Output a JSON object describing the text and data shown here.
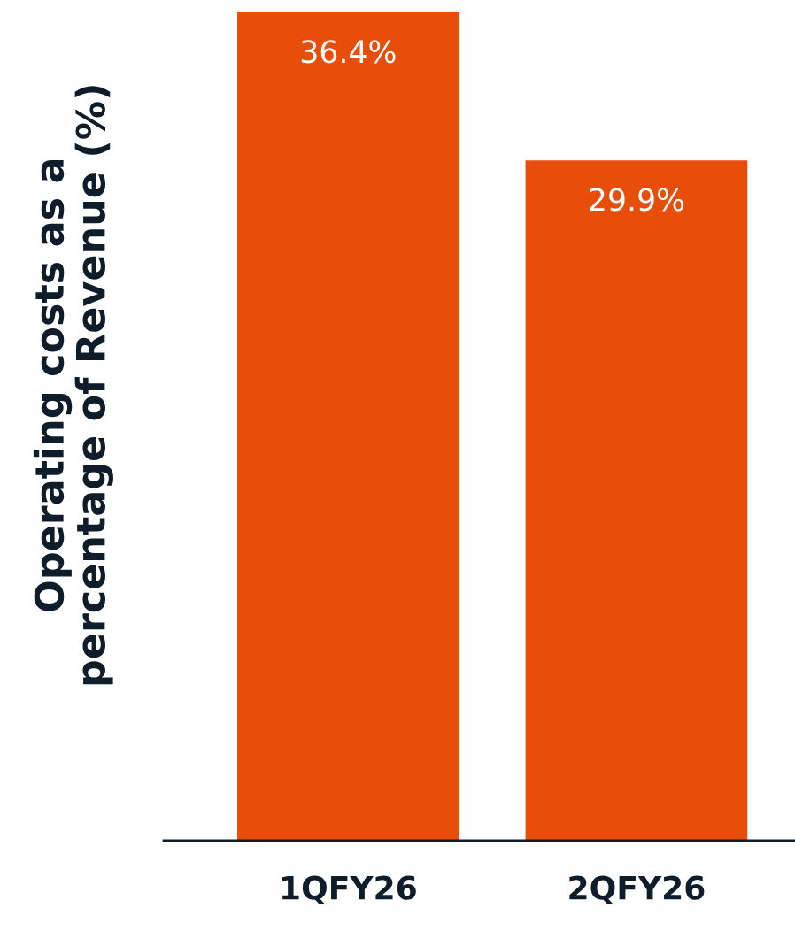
{
  "chart_data": {
    "type": "bar",
    "ylabel": "Operating costs as a\npercentage of Revenue (%)",
    "categories": [
      "1QFY26",
      "2QFY26"
    ],
    "values": [
      36.4,
      29.9
    ],
    "value_labels": [
      "36.4%",
      "29.9%"
    ],
    "color": "#e84e0a",
    "grid": false,
    "legend": false,
    "tick_labels": "x"
  }
}
